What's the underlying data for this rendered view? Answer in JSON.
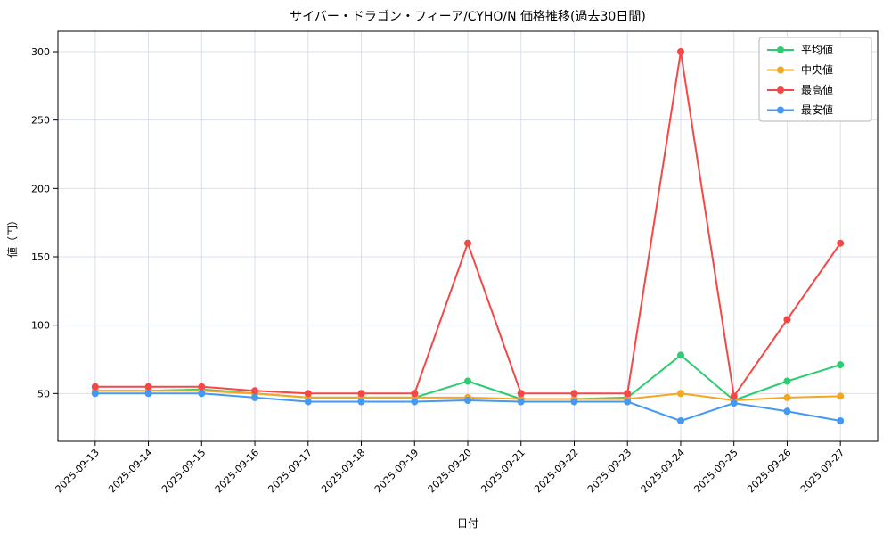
{
  "figure": {
    "title": "サイバー・ドラゴン・フィーア/CYHO/N 価格推移(過去30日間)",
    "xlabel": "日付",
    "ylabel": "値（円）"
  },
  "chart_data": {
    "type": "line",
    "title": "サイバー・ドラゴン・フィーア/CYHO/N 価格推移(過去30日間)",
    "xlabel": "日付",
    "ylabel": "値（円）",
    "categories": [
      "2025-09-13",
      "2025-09-14",
      "2025-09-15",
      "2025-09-16",
      "2025-09-17",
      "2025-09-18",
      "2025-09-19",
      "2025-09-20",
      "2025-09-21",
      "2025-09-22",
      "2025-09-23",
      "2025-09-24",
      "2025-09-25",
      "2025-09-26",
      "2025-09-27"
    ],
    "series": [
      {
        "name": "平均値",
        "color": "#2ecc71",
        "values": [
          52,
          52,
          53,
          50,
          47,
          47,
          47,
          59,
          46,
          46,
          47,
          78,
          45,
          59,
          71
        ]
      },
      {
        "name": "中央値",
        "color": "#f5a623",
        "values": [
          52,
          52,
          52,
          50,
          47,
          47,
          47,
          47,
          46,
          46,
          46,
          50,
          45,
          47,
          48
        ]
      },
      {
        "name": "最高値",
        "color": "#f64747",
        "values": [
          55,
          55,
          55,
          52,
          50,
          50,
          50,
          160,
          50,
          50,
          50,
          300,
          48,
          104,
          160
        ]
      },
      {
        "name": "最安値",
        "color": "#4699f2",
        "values": [
          50,
          50,
          50,
          47,
          44,
          44,
          44,
          45,
          44,
          44,
          44,
          30,
          43,
          37,
          30
        ]
      }
    ],
    "ylim": [
      15,
      315
    ],
    "yticks": [
      50,
      100,
      150,
      200,
      250,
      300
    ],
    "grid": true,
    "grid_color": "#d9e0ec",
    "spine_color": "#000000",
    "background": "#ffffff",
    "legend_position": "top-right"
  }
}
